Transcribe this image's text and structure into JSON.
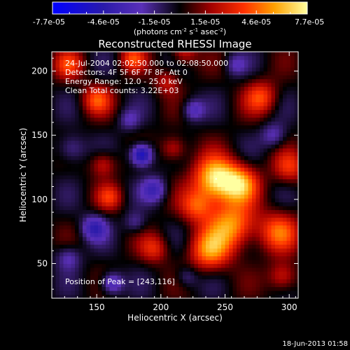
{
  "chart_data": {
    "type": "heatmap",
    "title": "Reconstructed RHESSI Image",
    "xlabel": "Heliocentric X (arcsec)",
    "ylabel": "Heliocentric Y (arcsec)",
    "xlim": [
      115,
      307
    ],
    "ylim": [
      23,
      215
    ],
    "x_ticks": [
      150,
      200,
      250,
      300
    ],
    "y_ticks": [
      50,
      100,
      150,
      200
    ],
    "colorbar": {
      "ticks": [
        "-7.7e-05",
        "-4.6e-05",
        "-1.5e-05",
        "1.5e-05",
        "4.6e-05",
        "7.7e-05"
      ],
      "range": [
        -7.7e-05,
        7.7e-05
      ],
      "unit_label": {
        "prefix": "(photons cm",
        "exp1": "-2",
        "mid1": " s",
        "exp2": "-1",
        "mid2": " asec",
        "exp3": "-2",
        "suffix": ")"
      }
    },
    "annotations": [
      "24-Jul-2004 02:02:50.000 to 02:08:50.000",
      "Detectors: 4F 5F 6F 7F 8F, Att 0",
      "Energy Range: 12.0 - 25.0 keV",
      "Clean     Total counts: 3.22E+03"
    ],
    "peak_label": "Position of Peak = [243,116]",
    "peak_position": [
      243,
      116
    ],
    "sources": [
      {
        "x": 243,
        "y": 116,
        "amp": 7.5e-05,
        "sigma": 12
      },
      {
        "x": 262,
        "y": 112,
        "amp": 5e-05,
        "sigma": 10
      },
      {
        "x": 255,
        "y": 80,
        "amp": 5.5e-05,
        "sigma": 13
      },
      {
        "x": 238,
        "y": 60,
        "amp": 4.8e-05,
        "sigma": 11
      },
      {
        "x": 292,
        "y": 75,
        "amp": 4.2e-05,
        "sigma": 11
      },
      {
        "x": 228,
        "y": 95,
        "amp": 3.8e-05,
        "sigma": 9
      },
      {
        "x": 278,
        "y": 180,
        "amp": 3.8e-05,
        "sigma": 9
      },
      {
        "x": 300,
        "y": 125,
        "amp": 3.3e-05,
        "sigma": 9
      },
      {
        "x": 150,
        "y": 178,
        "amp": 3.8e-05,
        "sigma": 8
      },
      {
        "x": 128,
        "y": 205,
        "amp": 3.3e-05,
        "sigma": 8
      },
      {
        "x": 178,
        "y": 210,
        "amp": 3.5e-05,
        "sigma": 7
      },
      {
        "x": 218,
        "y": 215,
        "amp": 3e-05,
        "sigma": 7
      },
      {
        "x": 160,
        "y": 102,
        "amp": 3e-05,
        "sigma": 7
      },
      {
        "x": 195,
        "y": 62,
        "amp": 3e-05,
        "sigma": 8
      },
      {
        "x": 155,
        "y": 128,
        "amp": 2.8e-05,
        "sigma": 7
      },
      {
        "x": 210,
        "y": 140,
        "amp": 3e-05,
        "sigma": 7
      },
      {
        "x": 295,
        "y": 40,
        "amp": 3.2e-05,
        "sigma": 8
      },
      {
        "x": 205,
        "y": 192,
        "amp": 2.5e-05,
        "sigma": 7
      },
      {
        "x": 185,
        "y": 135,
        "amp": -6.5e-05,
        "sigma": 6
      },
      {
        "x": 195,
        "y": 108,
        "amp": -3.5e-05,
        "sigma": 7
      },
      {
        "x": 148,
        "y": 78,
        "amp": -4e-05,
        "sigma": 7
      },
      {
        "x": 162,
        "y": 35,
        "amp": -4e-05,
        "sigma": 6
      },
      {
        "x": 225,
        "y": 170,
        "amp": -3e-05,
        "sigma": 6
      },
      {
        "x": 288,
        "y": 150,
        "amp": -2.5e-05,
        "sigma": 7
      },
      {
        "x": 130,
        "y": 140,
        "amp": -2.5e-05,
        "sigma": 8
      },
      {
        "x": 258,
        "y": 205,
        "amp": -2e-05,
        "sigma": 6
      },
      {
        "x": 220,
        "y": 40,
        "amp": -2e-05,
        "sigma": 6
      },
      {
        "x": 128,
        "y": 55,
        "amp": -2.5e-05,
        "sigma": 7
      },
      {
        "x": 175,
        "y": 162,
        "amp": -2e-05,
        "sigma": 6
      },
      {
        "x": 180,
        "y": 82,
        "amp": -2e-05,
        "sigma": 6
      }
    ]
  },
  "footer": {
    "timestamp": "18-Jun-2013 01:58"
  }
}
